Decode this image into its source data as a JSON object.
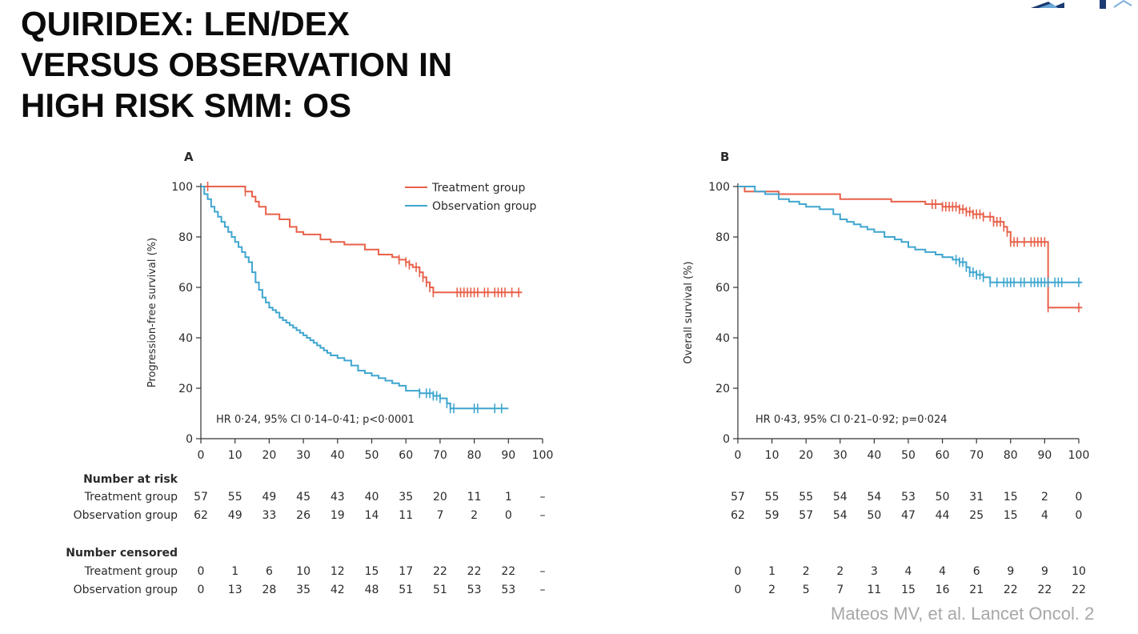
{
  "slide": {
    "title_lines": [
      "QUIRIDEX: LEN/DEX",
      "VERSUS OBSERVATION IN",
      "HIGH RISK SMM: OS"
    ],
    "citation": "Mateos MV, et al. Lancet Oncol. 2"
  },
  "colors": {
    "treatment": "#e8614a",
    "observation": "#3fa6cf",
    "axis": "#333333",
    "text": "#2a2a2a"
  },
  "chart_data": [
    {
      "panel_label": "A",
      "type": "line",
      "title": "",
      "ylabel": "Progression-free survival (%)",
      "xlabel": "",
      "xlim": [
        0,
        100
      ],
      "ylim": [
        0,
        100
      ],
      "xticks": [
        0,
        10,
        20,
        30,
        40,
        50,
        60,
        70,
        80,
        90,
        100
      ],
      "yticks": [
        0,
        20,
        40,
        60,
        80,
        100
      ],
      "legend": [
        "Treatment group",
        "Observation group"
      ],
      "annotation": "HR 0·24, 95% CI 0·14–0·41; p<0·0001",
      "series": [
        {
          "name": "Treatment group",
          "color_key": "treatment",
          "x": [
            0,
            9,
            13,
            15,
            16,
            17,
            19,
            23,
            26,
            28,
            30,
            35,
            38,
            42,
            48,
            52,
            56,
            58,
            60,
            61,
            62,
            64,
            65,
            66,
            67,
            68,
            94
          ],
          "y": [
            100,
            100,
            98,
            96,
            94,
            92,
            89,
            87,
            84,
            82,
            81,
            79,
            78,
            77,
            75,
            73,
            72,
            71,
            70,
            69,
            68,
            66,
            64,
            62,
            60,
            58,
            58
          ],
          "censored_x": [
            2,
            13,
            58,
            60,
            61,
            63,
            64,
            65,
            66,
            67,
            68,
            75,
            76,
            77,
            78,
            79,
            80,
            81,
            83,
            84,
            86,
            87,
            88,
            89,
            91,
            93
          ]
        },
        {
          "name": "Observation group",
          "color_key": "observation",
          "x": [
            0,
            1,
            2,
            3,
            4,
            5,
            6,
            7,
            8,
            9,
            10,
            11,
            12,
            13,
            14,
            15,
            16,
            17,
            18,
            19,
            20,
            21,
            22,
            23,
            24,
            25,
            26,
            27,
            28,
            29,
            30,
            31,
            32,
            33,
            34,
            35,
            36,
            37,
            38,
            40,
            42,
            44,
            46,
            48,
            50,
            52,
            54,
            56,
            58,
            60,
            64,
            68,
            70,
            72,
            73,
            90
          ],
          "y": [
            100,
            97,
            95,
            92,
            90,
            88,
            86,
            84,
            82,
            80,
            78,
            76,
            74,
            72,
            70,
            66,
            62,
            59,
            56,
            54,
            52,
            51,
            50,
            48,
            47,
            46,
            45,
            44,
            43,
            42,
            41,
            40,
            39,
            38,
            37,
            36,
            35,
            34,
            33,
            32,
            31,
            29,
            27,
            26,
            25,
            24,
            23,
            22,
            21,
            19,
            18,
            17,
            16,
            14,
            12,
            12
          ],
          "censored_x": [
            64,
            66,
            67,
            68,
            69,
            70,
            72,
            73,
            74,
            80,
            81,
            86,
            88
          ]
        }
      ],
      "risk_table": {
        "at_risk_heading": "Number at risk",
        "censored_heading": "Number censored",
        "rows": [
          {
            "label": "Treatment group",
            "at_risk": [
              "57",
              "55",
              "49",
              "45",
              "43",
              "40",
              "35",
              "20",
              "11",
              "1",
              "–"
            ],
            "censored": [
              "0",
              "1",
              "6",
              "10",
              "12",
              "15",
              "17",
              "22",
              "22",
              "22",
              "–"
            ]
          },
          {
            "label": "Observation group",
            "at_risk": [
              "62",
              "49",
              "33",
              "26",
              "19",
              "14",
              "11",
              "7",
              "2",
              "0",
              "–"
            ],
            "censored": [
              "0",
              "13",
              "28",
              "35",
              "42",
              "48",
              "51",
              "51",
              "53",
              "53",
              "–"
            ]
          }
        ]
      }
    },
    {
      "panel_label": "B",
      "type": "line",
      "title": "",
      "ylabel": "Overall survival (%)",
      "xlabel": "",
      "xlim": [
        0,
        100
      ],
      "ylim": [
        0,
        100
      ],
      "xticks": [
        0,
        10,
        20,
        30,
        40,
        50,
        60,
        70,
        80,
        90,
        100
      ],
      "yticks": [
        0,
        20,
        40,
        60,
        80,
        100
      ],
      "legend": [],
      "annotation": "HR 0·43, 95% CI 0·21–0·92; p=0·024",
      "series": [
        {
          "name": "Treatment group",
          "color_key": "treatment",
          "x": [
            0,
            2,
            10,
            12,
            30,
            45,
            55,
            60,
            65,
            67,
            69,
            72,
            75,
            78,
            79,
            80,
            91,
            91,
            101
          ],
          "y": [
            100,
            98,
            98,
            97,
            95,
            94,
            93,
            92,
            91,
            90,
            89,
            88,
            86,
            84,
            82,
            78,
            78,
            52,
            52
          ],
          "censored_x": [
            57,
            58,
            60,
            61,
            62,
            63,
            64,
            65,
            66,
            67,
            68,
            69,
            70,
            71,
            72,
            74,
            75,
            76,
            77,
            78,
            79,
            80,
            81,
            82,
            84,
            86,
            87,
            88,
            89,
            90,
            91,
            100
          ]
        },
        {
          "name": "Observation group",
          "color_key": "observation",
          "x": [
            0,
            5,
            8,
            12,
            15,
            18,
            20,
            24,
            28,
            30,
            32,
            34,
            36,
            38,
            40,
            43,
            46,
            48,
            50,
            52,
            55,
            58,
            60,
            63,
            65,
            67,
            68,
            70,
            72,
            74,
            101
          ],
          "y": [
            100,
            98,
            97,
            95,
            94,
            93,
            92,
            91,
            89,
            87,
            86,
            85,
            84,
            83,
            82,
            80,
            79,
            78,
            76,
            75,
            74,
            73,
            72,
            71,
            70,
            68,
            66,
            65,
            64,
            62,
            62
          ],
          "censored_x": [
            64,
            65,
            66,
            67,
            68,
            69,
            70,
            71,
            72,
            74,
            76,
            78,
            79,
            80,
            81,
            83,
            84,
            86,
            87,
            88,
            89,
            90,
            91,
            93,
            94,
            95,
            100
          ]
        }
      ],
      "risk_table": {
        "rows": [
          {
            "at_risk": [
              "57",
              "55",
              "55",
              "54",
              "54",
              "53",
              "50",
              "31",
              "15",
              "2",
              "0"
            ],
            "censored": [
              "0",
              "1",
              "2",
              "2",
              "3",
              "4",
              "4",
              "6",
              "9",
              "9",
              "10"
            ]
          },
          {
            "at_risk": [
              "62",
              "59",
              "57",
              "54",
              "50",
              "47",
              "44",
              "25",
              "15",
              "4",
              "0"
            ],
            "censored": [
              "0",
              "2",
              "5",
              "7",
              "11",
              "15",
              "16",
              "21",
              "22",
              "22",
              "22"
            ]
          }
        ]
      }
    }
  ]
}
